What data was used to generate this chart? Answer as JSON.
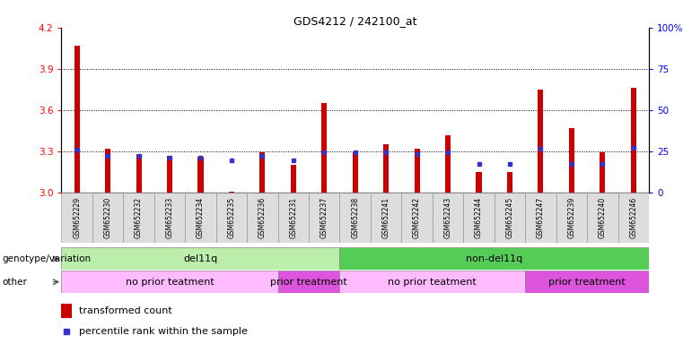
{
  "title": "GDS4212 / 242100_at",
  "samples": [
    "GSM652229",
    "GSM652230",
    "GSM652232",
    "GSM652233",
    "GSM652234",
    "GSM652235",
    "GSM652236",
    "GSM652231",
    "GSM652237",
    "GSM652238",
    "GSM652241",
    "GSM652242",
    "GSM652243",
    "GSM652244",
    "GSM652245",
    "GSM652247",
    "GSM652239",
    "GSM652240",
    "GSM652246"
  ],
  "red_heights": [
    4.07,
    3.32,
    3.28,
    3.27,
    3.26,
    3.01,
    3.29,
    3.2,
    3.65,
    3.3,
    3.35,
    3.32,
    3.42,
    3.15,
    3.15,
    3.75,
    3.47,
    3.29,
    3.76
  ],
  "blue_positions": [
    3.315,
    3.27,
    3.265,
    3.255,
    3.255,
    3.235,
    3.265,
    3.235,
    3.295,
    3.29,
    3.295,
    3.28,
    3.295,
    3.21,
    3.21,
    3.32,
    3.21,
    3.21,
    3.325
  ],
  "ylim_left": [
    3.0,
    4.2
  ],
  "ylim_right": [
    0,
    100
  ],
  "yticks_left": [
    3.0,
    3.3,
    3.6,
    3.9,
    4.2
  ],
  "yticks_right": [
    0,
    25,
    50,
    75,
    100
  ],
  "ytick_labels_right": [
    "0",
    "25",
    "50",
    "75",
    "100%"
  ],
  "hlines": [
    3.3,
    3.6,
    3.9
  ],
  "background_color": "#ffffff",
  "bar_color": "#cc0000",
  "marker_color": "#3333cc",
  "bar_baseline": 3.0,
  "genotype_groups": [
    {
      "label": "del11q",
      "start": 0,
      "end": 9,
      "color": "#bbeeaa"
    },
    {
      "label": "non-del11q",
      "start": 9,
      "end": 19,
      "color": "#55cc55"
    }
  ],
  "other_groups": [
    {
      "label": "no prior teatment",
      "start": 0,
      "end": 7,
      "color": "#ffbbff"
    },
    {
      "label": "prior treatment",
      "start": 7,
      "end": 9,
      "color": "#dd55dd"
    },
    {
      "label": "no prior teatment",
      "start": 9,
      "end": 15,
      "color": "#ffbbff"
    },
    {
      "label": "prior treatment",
      "start": 15,
      "end": 19,
      "color": "#dd55dd"
    }
  ],
  "left_label": "genotype/variation",
  "other_label": "other",
  "legend_red": "transformed count",
  "legend_blue": "percentile rank within the sample"
}
